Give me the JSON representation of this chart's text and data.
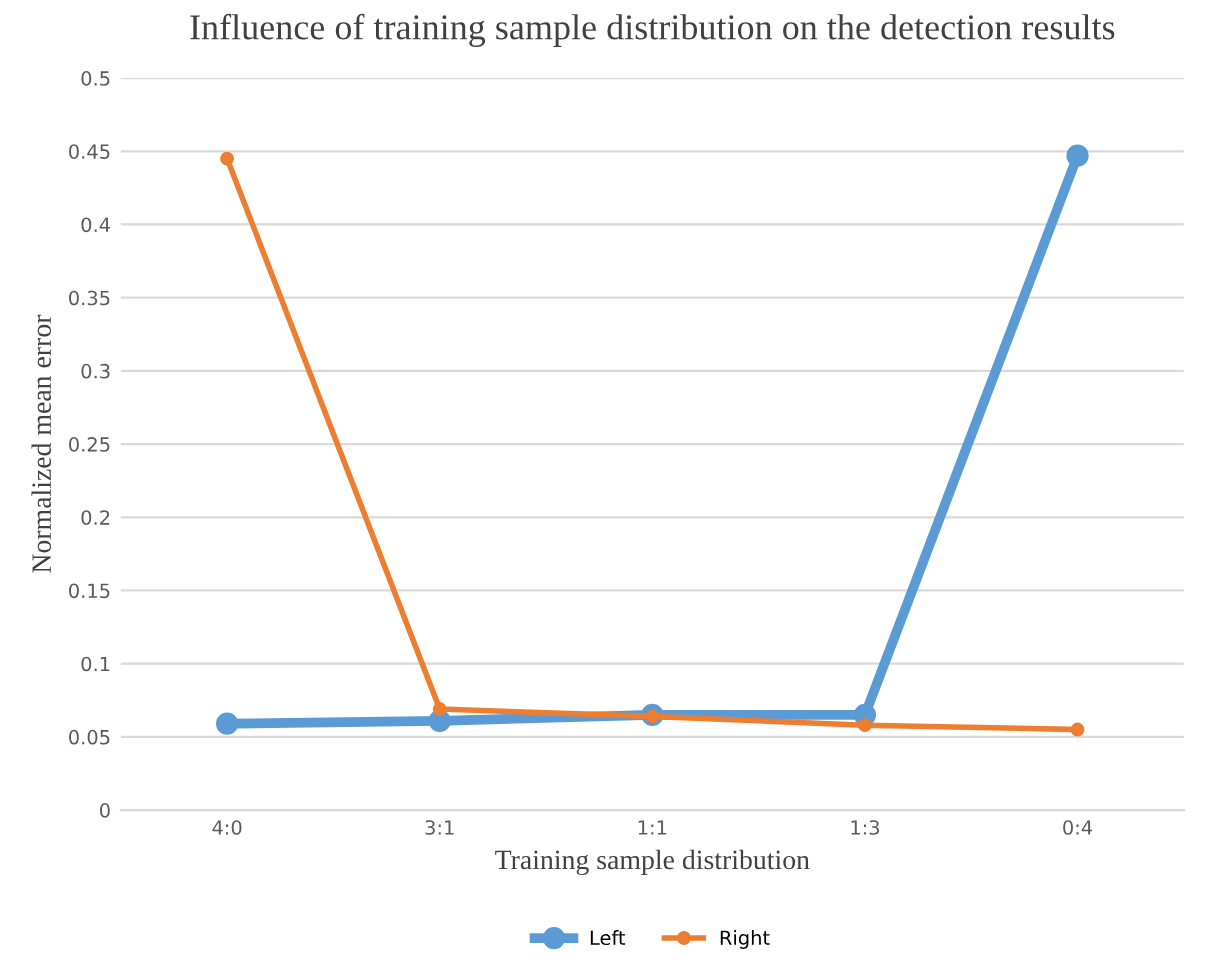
{
  "chart_data": {
    "type": "line",
    "title": "Influence of training sample distribution on the detection results",
    "xlabel": "Training sample distribution",
    "ylabel": "Normalized mean error",
    "categories": [
      "4:0",
      "3:1",
      "1:1",
      "1:3",
      "0:4"
    ],
    "series": [
      {
        "name": "Left",
        "color": "#5b9bd5",
        "values": [
          0.059,
          0.061,
          0.065,
          0.065,
          0.447
        ]
      },
      {
        "name": "Right",
        "color": "#ed7d31",
        "values": [
          0.445,
          0.069,
          0.064,
          0.058,
          0.055
        ]
      }
    ],
    "ylim": [
      0,
      0.5
    ],
    "yticks": [
      0,
      0.05,
      0.1,
      0.15,
      0.2,
      0.25,
      0.3,
      0.35,
      0.4,
      0.45,
      0.5
    ],
    "grid": "y",
    "legend": "bottom",
    "marker": "circle",
    "line_style": "solid"
  }
}
